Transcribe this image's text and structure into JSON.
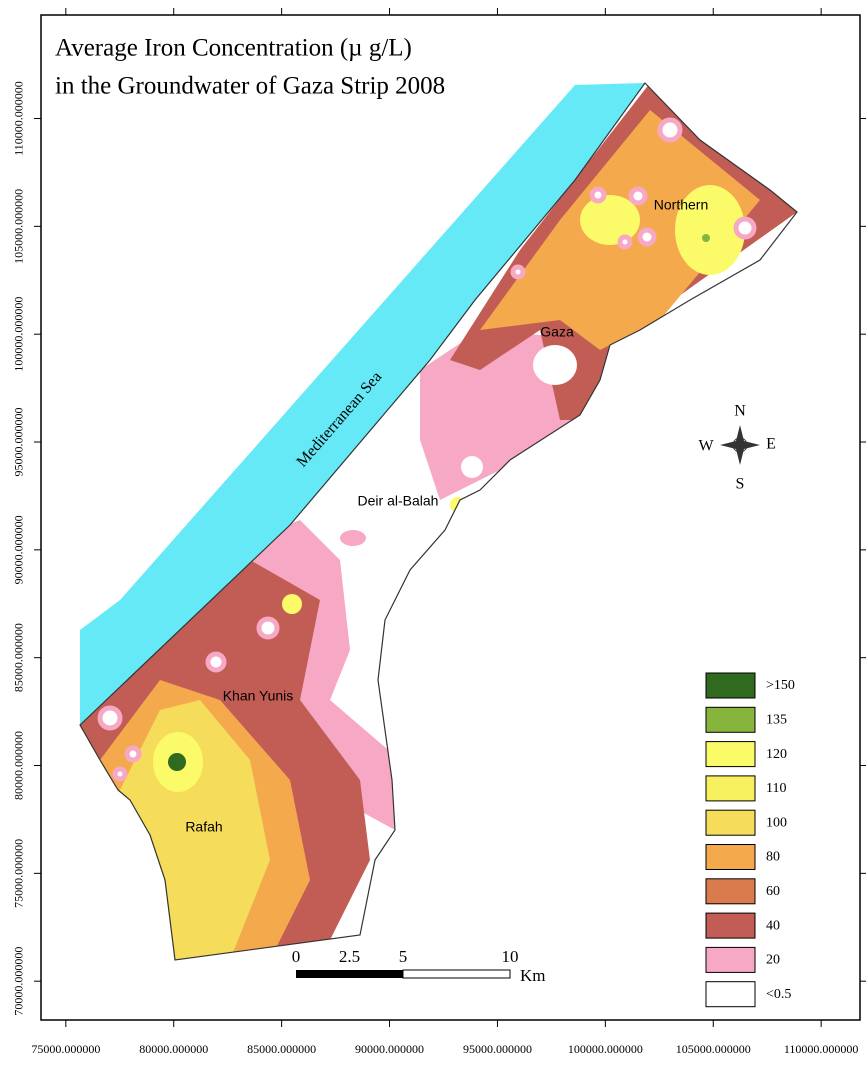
{
  "title": [
    "Average Iron Concentration (µ g/L)",
    "in the Groundwater of Gaza Strip 2008"
  ],
  "xlim": [
    73850,
    111800
  ],
  "ylim": [
    68200,
    114800
  ],
  "x_ticks": [
    {
      "value": 75000,
      "label": "75000.000000"
    },
    {
      "value": 80000,
      "label": "80000.000000"
    },
    {
      "value": 85000,
      "label": "85000.000000"
    },
    {
      "value": 90000,
      "label": "90000.000000"
    },
    {
      "value": 95000,
      "label": "95000.000000"
    },
    {
      "value": 100000,
      "label": "100000.000000"
    },
    {
      "value": 105000,
      "label": "105000.000000"
    },
    {
      "value": 110000,
      "label": "110000.000000"
    }
  ],
  "y_ticks": [
    {
      "value": 70000,
      "label": "70000.000000"
    },
    {
      "value": 75000,
      "label": "75000.000000"
    },
    {
      "value": 80000,
      "label": "80000.000000"
    },
    {
      "value": 85000,
      "label": "85000.000000"
    },
    {
      "value": 90000,
      "label": "90000.000000"
    },
    {
      "value": 95000,
      "label": "95000.000000"
    },
    {
      "value": 100000,
      "label": "100000.000000"
    },
    {
      "value": 105000,
      "label": "105000.000000"
    },
    {
      "value": 110000,
      "label": "110000.000000"
    }
  ],
  "sea_label": "Mediterranean Sea",
  "places": [
    "Northern",
    "Gaza",
    "Deir al-Balah",
    "Khan Yunis",
    "Rafah"
  ],
  "compass": {
    "n": "N",
    "s": "S",
    "e": "E",
    "w": "W"
  },
  "scale_bar": {
    "ticks": [
      0,
      2.5,
      5,
      10
    ],
    "unit": "Km"
  },
  "legend": [
    {
      "label": ">150",
      "color": "#2f6a1f"
    },
    {
      "label": "135",
      "color": "#86b43c"
    },
    {
      "label": "120",
      "color": "#fbfb6a"
    },
    {
      "label": "110",
      "color": "#f7f05e"
    },
    {
      "label": "100",
      "color": "#f5dc5a"
    },
    {
      "label": "80",
      "color": "#f4a94d"
    },
    {
      "label": "60",
      "color": "#d97b4d"
    },
    {
      "label": "40",
      "color": "#c15d55"
    },
    {
      "label": "20",
      "color": "#f7a8c4"
    },
    {
      "label": "<0.5",
      "color": "#ffffff"
    }
  ]
}
